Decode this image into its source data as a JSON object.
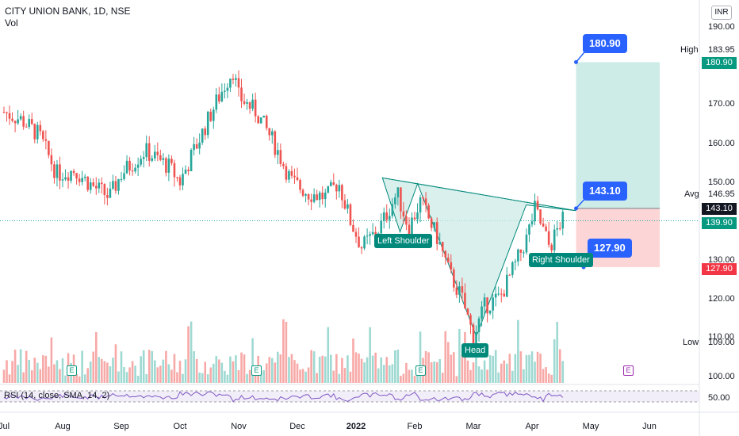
{
  "header": {
    "title": "CITY UNION BANK, 1D, NSE",
    "subtitle": "Vol"
  },
  "currency": "INR",
  "rsi_label": "RSI (14, close, SMA, 14, 2)",
  "price_axis_ticks": [
    "190.00",
    "180.00",
    "170.00",
    "160.00",
    "150.00",
    "130.00",
    "120.00",
    "110.00",
    "100.00"
  ],
  "rsi_axis_tick": "50.00",
  "side_labels": {
    "high_key": "High",
    "high_value": "183.95",
    "avg_key": "Avg",
    "avg_value": "146.95",
    "low_key": "Low",
    "low_value": "109.00"
  },
  "price_tags": {
    "target": "180.90",
    "entry": "143.10",
    "last": "139.90",
    "stop": "127.90"
  },
  "callouts": {
    "target": "180.90",
    "entry": "143.10",
    "stop": "127.90"
  },
  "pattern_labels": {
    "left_shoulder": "Left Shoulder",
    "head": "Head",
    "right_shoulder": "Right Shoulder"
  },
  "events": {
    "earnings": "E"
  },
  "colors": {
    "up": "#26a69a",
    "down": "#ef5350",
    "profit_zone": "#cdebe7",
    "loss_zone": "#fcd6d6",
    "callout": "#2962ff",
    "pattern": "#00897b"
  },
  "chart_data": {
    "type": "candlestick",
    "title": "CITY UNION BANK, 1D, NSE",
    "x_labels": [
      "Jul",
      "Aug",
      "Sep",
      "Oct",
      "Nov",
      "Dec",
      "2022",
      "Feb",
      "Mar",
      "Apr",
      "May",
      "Jun"
    ],
    "ylim": [
      100,
      190
    ],
    "close_path": [
      {
        "month": 0.0,
        "close": 168
      },
      {
        "month": 0.3,
        "close": 166
      },
      {
        "month": 0.6,
        "close": 162
      },
      {
        "month": 0.9,
        "close": 152
      },
      {
        "month": 1.2,
        "close": 153
      },
      {
        "month": 1.5,
        "close": 149
      },
      {
        "month": 1.8,
        "close": 146
      },
      {
        "month": 2.0,
        "close": 152
      },
      {
        "month": 2.4,
        "close": 158
      },
      {
        "month": 2.8,
        "close": 154
      },
      {
        "month": 3.0,
        "close": 150
      },
      {
        "month": 3.3,
        "close": 160
      },
      {
        "month": 3.6,
        "close": 170
      },
      {
        "month": 3.9,
        "close": 179
      },
      {
        "month": 4.0,
        "close": 172
      },
      {
        "month": 4.3,
        "close": 168
      },
      {
        "month": 4.6,
        "close": 160
      },
      {
        "month": 4.9,
        "close": 150
      },
      {
        "month": 5.2,
        "close": 147
      },
      {
        "month": 5.5,
        "close": 146
      },
      {
        "month": 5.7,
        "close": 150
      },
      {
        "month": 5.9,
        "close": 140
      },
      {
        "month": 6.1,
        "close": 133
      },
      {
        "month": 6.4,
        "close": 138
      },
      {
        "month": 6.7,
        "close": 147
      },
      {
        "month": 6.9,
        "close": 138
      },
      {
        "month": 7.1,
        "close": 145
      },
      {
        "month": 7.4,
        "close": 135
      },
      {
        "month": 7.6,
        "close": 126
      },
      {
        "month": 7.8,
        "close": 120
      },
      {
        "month": 8.0,
        "close": 110
      },
      {
        "month": 8.2,
        "close": 118
      },
      {
        "month": 8.45,
        "close": 120
      },
      {
        "month": 8.7,
        "close": 128
      },
      {
        "month": 8.9,
        "close": 135
      },
      {
        "month": 9.05,
        "close": 143
      },
      {
        "month": 9.3,
        "close": 133
      },
      {
        "month": 9.5,
        "close": 140
      }
    ],
    "pattern_points": [
      {
        "name": "Left Shoulder",
        "month": 6.55,
        "price": 151
      },
      {
        "name": "Head",
        "month": 8.05,
        "price": 110
      },
      {
        "name": "Right Shoulder",
        "month": 9.05,
        "price": 143
      }
    ],
    "position": {
      "entry": 143.1,
      "target": 180.9,
      "stop": 127.9
    },
    "price_range_high": 183.95,
    "price_range_low": 109.0,
    "average": 146.95,
    "last": 139.9,
    "rsi_level": 50,
    "volume_axis": "relative"
  }
}
